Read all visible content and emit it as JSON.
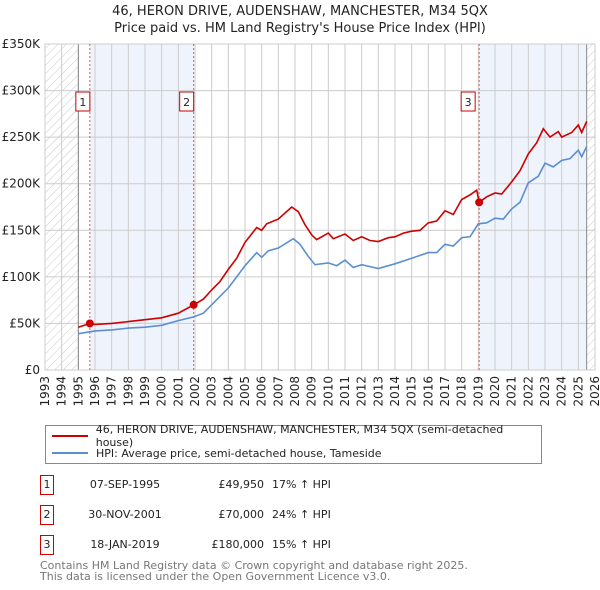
{
  "title_line1": "46, HERON DRIVE, AUDENSHAW, MANCHESTER, M34 5QX",
  "title_line2": "Price paid vs. HM Land Registry's House Price Index (HPI)",
  "legend": {
    "property": "46, HERON DRIVE, AUDENSHAW, MANCHESTER, M34 5QX (semi-detached house)",
    "hpi": "HPI: Average price, semi-detached house, Tameside"
  },
  "transactions": [
    {
      "num": "1",
      "date": "07-SEP-1995",
      "price": "£49,950",
      "hpi": "17% ↑ HPI"
    },
    {
      "num": "2",
      "date": "30-NOV-2001",
      "price": "£70,000",
      "hpi": "24% ↑ HPI"
    },
    {
      "num": "3",
      "date": "18-JAN-2019",
      "price": "£180,000",
      "hpi": "15% ↑ HPI"
    }
  ],
  "footer": {
    "line1": "Contains HM Land Registry data © Crown copyright and database right 2025.",
    "line2": "This data is licensed under the Open Government Licence v3.0."
  },
  "colors": {
    "property": "#cc0000",
    "hpi": "#5b8fd0",
    "shade": "#eef3fc"
  },
  "chart_data": {
    "type": "line",
    "xlim": [
      1993,
      2026
    ],
    "ylim": [
      0,
      350000
    ],
    "yticks": [
      0,
      50000,
      100000,
      150000,
      200000,
      250000,
      300000,
      350000
    ],
    "ytick_labels": [
      "£0",
      "£50K",
      "£100K",
      "£150K",
      "£200K",
      "£250K",
      "£300K",
      "£350K"
    ],
    "xticks": [
      "1993",
      "1994",
      "1995",
      "1996",
      "1997",
      "1998",
      "1999",
      "2000",
      "2001",
      "2002",
      "2003",
      "2004",
      "2005",
      "2006",
      "2007",
      "2008",
      "2009",
      "2010",
      "2011",
      "2012",
      "2013",
      "2014",
      "2015",
      "2016",
      "2017",
      "2018",
      "2019",
      "2020",
      "2021",
      "2022",
      "2023",
      "2024",
      "2025",
      "2026"
    ],
    "grid": true,
    "shaded_ranges": [
      [
        1995.69,
        2001.92
      ],
      [
        2019.05,
        2025.5
      ]
    ],
    "hatched_ranges": [
      [
        1993,
        1995
      ],
      [
        2025.5,
        2026
      ]
    ],
    "sales": [
      {
        "label": "1",
        "x": 1995.69,
        "y": 49950
      },
      {
        "label": "2",
        "x": 2001.92,
        "y": 70000
      },
      {
        "label": "3",
        "x": 2019.05,
        "y": 180000
      }
    ],
    "series": [
      {
        "name": "46, HERON DRIVE, AUDENSHAW, MANCHESTER, M34 5QX (semi-detached house)",
        "x": [
          1995,
          1995.69,
          1996,
          1997,
          1998,
          1999,
          2000,
          2001,
          2001.92,
          2002.5,
          2003,
          2003.5,
          2004,
          2004.5,
          2005,
          2005.7,
          2006,
          2006.3,
          2007,
          2007.8,
          2008.2,
          2008.6,
          2009,
          2009.3,
          2010,
          2010.3,
          2011,
          2011.5,
          2012,
          2012.5,
          2013,
          2013.6,
          2014,
          2014.5,
          2015,
          2015.5,
          2016,
          2016.5,
          2017,
          2017.5,
          2018,
          2018.5,
          2018.9,
          2019.05,
          2019.5,
          2020,
          2020.4,
          2021,
          2021.5,
          2022,
          2022.5,
          2022.9,
          2023.3,
          2023.8,
          2024,
          2024.6,
          2025,
          2025.2,
          2025.5
        ],
        "y": [
          46000,
          49950,
          49000,
          50000,
          52000,
          54000,
          56000,
          61000,
          70000,
          76000,
          86000,
          95000,
          108000,
          120000,
          137000,
          153000,
          150000,
          157000,
          162000,
          175000,
          170000,
          156000,
          145000,
          140000,
          147000,
          141000,
          146000,
          139000,
          143000,
          139000,
          138000,
          142000,
          143000,
          147000,
          149000,
          150000,
          158000,
          160000,
          171000,
          167000,
          183000,
          188000,
          193000,
          180000,
          186000,
          190000,
          189000,
          202000,
          214000,
          232000,
          244000,
          259000,
          250000,
          256000,
          250000,
          255000,
          263000,
          255000,
          267000
        ]
      },
      {
        "name": "HPI: Average price, semi-detached house, Tameside",
        "x": [
          1995,
          1996,
          1997,
          1998,
          1999,
          2000,
          2001,
          2001.92,
          2002.5,
          2003,
          2004,
          2004.5,
          2005,
          2005.7,
          2006,
          2006.4,
          2007,
          2007.9,
          2008.3,
          2008.8,
          2009.2,
          2010,
          2010.5,
          2011,
          2011.5,
          2012,
          2012.5,
          2013,
          2014,
          2015,
          2016,
          2016.5,
          2017,
          2017.5,
          2018,
          2018.5,
          2019,
          2019.5,
          2020,
          2020.5,
          2021,
          2021.5,
          2022,
          2022.6,
          2023,
          2023.5,
          2024,
          2024.5,
          2025,
          2025.2,
          2025.5
        ],
        "y": [
          39000,
          42000,
          43000,
          45000,
          46000,
          48000,
          53000,
          57000,
          61000,
          70000,
          88000,
          100000,
          112000,
          126000,
          121000,
          128000,
          131000,
          141000,
          135000,
          122000,
          113000,
          115000,
          112000,
          118000,
          110000,
          113000,
          111000,
          109000,
          114000,
          120000,
          126000,
          126000,
          135000,
          133000,
          142000,
          143000,
          157000,
          158000,
          163000,
          162000,
          173000,
          180000,
          201000,
          208000,
          222000,
          218000,
          225000,
          227000,
          236000,
          229000,
          240000
        ]
      }
    ]
  }
}
